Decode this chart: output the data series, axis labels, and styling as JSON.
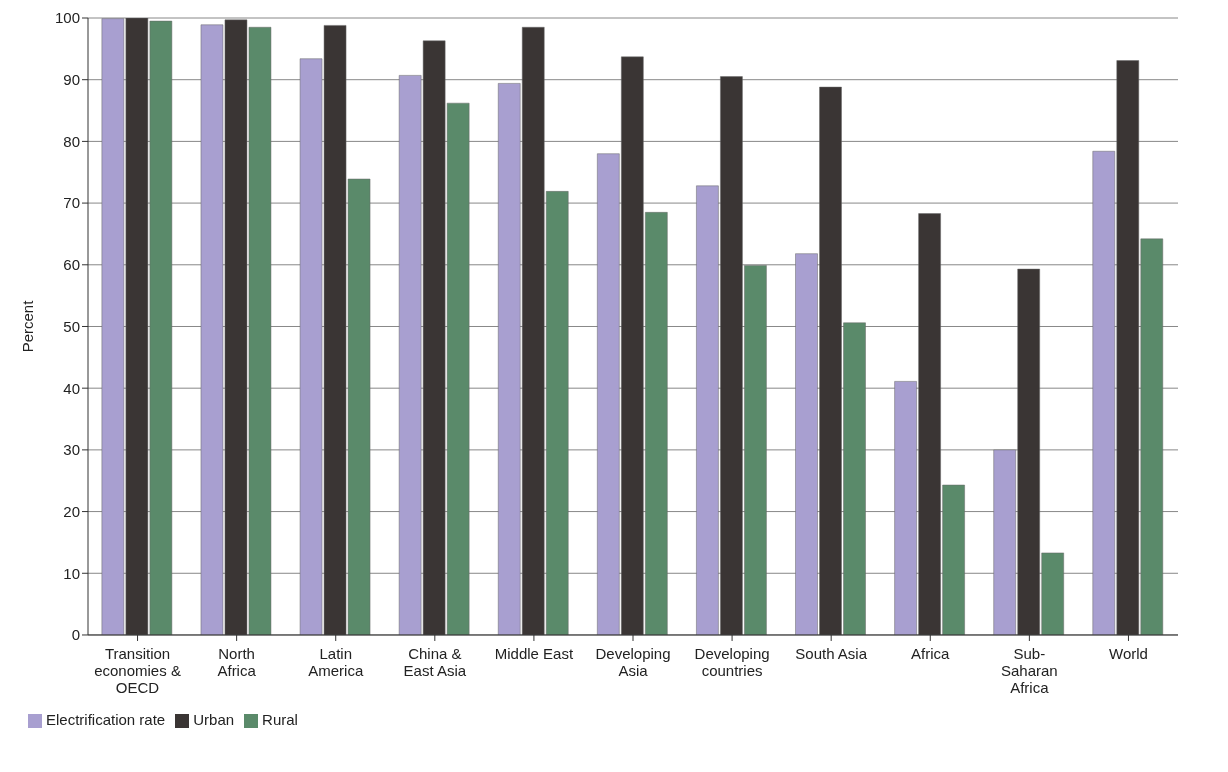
{
  "chart_data": {
    "type": "bar",
    "ylabel": "Percent",
    "categories": [
      "Transition economies & OECD",
      "North Africa",
      "Latin America",
      "China & East Asia",
      "Middle East",
      "Developing Asia",
      "Developing countries",
      "South Asia",
      "Africa",
      "Sub-Saharan Africa",
      "World"
    ],
    "series": [
      {
        "name": "Electrification rate",
        "color": "#a89fd0",
        "values": [
          99.9,
          98.9,
          93.4,
          90.7,
          89.4,
          78.0,
          72.8,
          61.8,
          41.1,
          30.0,
          78.4
        ]
      },
      {
        "name": "Urban",
        "color": "#3a3534",
        "values": [
          100,
          99.7,
          98.8,
          96.3,
          98.5,
          93.7,
          90.5,
          88.8,
          68.3,
          59.3,
          93.1
        ]
      },
      {
        "name": "Rural",
        "color": "#5a8a6a",
        "values": [
          99.5,
          98.5,
          73.9,
          86.2,
          71.9,
          68.5,
          59.9,
          50.6,
          24.3,
          13.3,
          64.2
        ]
      }
    ],
    "ylim": [
      0,
      100
    ],
    "yticks": [
      0,
      10,
      20,
      30,
      40,
      50,
      60,
      70,
      80,
      90,
      100
    ],
    "grid": "y",
    "legend": "bottom left"
  }
}
